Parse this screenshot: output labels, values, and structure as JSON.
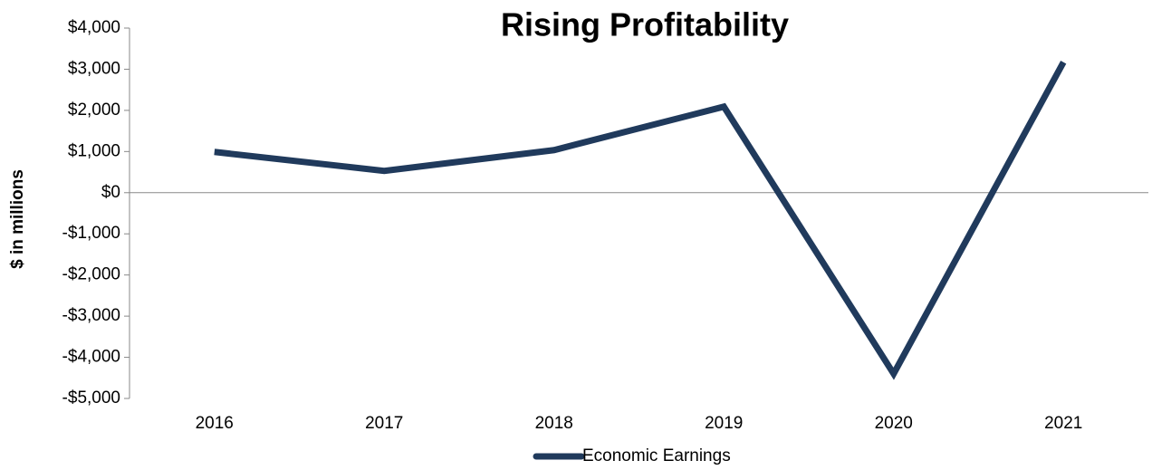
{
  "chart_data": {
    "type": "line",
    "title": "Rising Profitability",
    "y_label": "$ in millions",
    "categories": [
      "2016",
      "2017",
      "2018",
      "2019",
      "2020",
      "2021"
    ],
    "series": [
      {
        "name": "Economic Earnings",
        "color": "#203a5c",
        "values": [
          990,
          530,
          1035,
          2090,
          -4400,
          3170
        ]
      }
    ],
    "ylim": [
      -5000,
      4000
    ],
    "yticks": [
      {
        "value": -5000,
        "label": "-$5,000"
      },
      {
        "value": -4000,
        "label": "-$4,000"
      },
      {
        "value": -3000,
        "label": "-$3,000"
      },
      {
        "value": -2000,
        "label": "-$2,000"
      },
      {
        "value": -1000,
        "label": "-$1,000"
      },
      {
        "value": 0,
        "label": "$0"
      },
      {
        "value": 1000,
        "label": "$1,000"
      },
      {
        "value": 2000,
        "label": "$2,000"
      },
      {
        "value": 3000,
        "label": "$3,000"
      },
      {
        "value": 4000,
        "label": "$4,000"
      }
    ],
    "legend": "bottom"
  }
}
